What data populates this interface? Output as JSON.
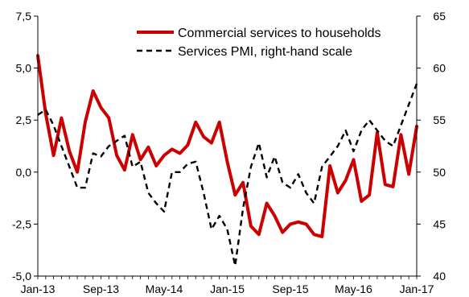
{
  "chart_data": {
    "type": "line",
    "x_tick_labels": [
      "Jan-13",
      "Sep-13",
      "May-14",
      "Jan-15",
      "Sep-15",
      "May-16",
      "Jan-17"
    ],
    "x_start": "2013-01",
    "left_axis": {
      "ticks": [
        7.5,
        5.0,
        2.5,
        0.0,
        -2.5,
        -5.0
      ],
      "tick_labels": [
        "7,5",
        "5,0",
        "2,5",
        "0,0",
        "-2,5",
        "-5,0"
      ],
      "ylim": [
        -5.0,
        7.5
      ]
    },
    "right_axis": {
      "ticks": [
        65,
        60,
        55,
        50,
        45,
        40
      ],
      "tick_labels": [
        "65",
        "60",
        "55",
        "50",
        "45",
        "40"
      ],
      "ylim": [
        40,
        65
      ]
    },
    "grid": false,
    "legend_position": "top-right",
    "series": [
      {
        "name": "Commercial services to households",
        "axis": "left",
        "color": "#cc0000",
        "style": "solid",
        "values": [
          5.6,
          2.8,
          0.8,
          2.6,
          1.0,
          0.0,
          2.4,
          3.9,
          3.1,
          2.6,
          0.8,
          0.1,
          1.8,
          0.6,
          1.2,
          0.3,
          0.8,
          1.1,
          0.9,
          1.3,
          2.4,
          1.7,
          1.4,
          2.4,
          0.5,
          -1.1,
          -0.5,
          -2.6,
          -3.0,
          -1.5,
          -2.1,
          -2.9,
          -2.5,
          -2.4,
          -2.5,
          -3.0,
          -3.1,
          0.3,
          -1.0,
          -0.4,
          0.6,
          -1.4,
          -1.1,
          1.9,
          -0.6,
          -0.7,
          1.8,
          -0.1,
          2.2
        ]
      },
      {
        "name": "Services PMI, right-hand scale",
        "axis": "right",
        "color": "#000000",
        "style": "dashed",
        "values": [
          55.5,
          56.0,
          54.5,
          52.5,
          50.5,
          48.5,
          48.5,
          51.8,
          51.5,
          52.5,
          53.0,
          53.5,
          50.5,
          51.0,
          48.0,
          47.0,
          46.2,
          50.0,
          50.0,
          50.8,
          51.0,
          48.0,
          44.5,
          45.8,
          44.5,
          41.0,
          46.5,
          50.5,
          52.8,
          49.5,
          51.5,
          49.0,
          48.5,
          49.8,
          48.0,
          47.0,
          50.5,
          51.5,
          52.5,
          54.0,
          52.0,
          54.0,
          55.0,
          54.0,
          53.0,
          52.5,
          54.5,
          56.5,
          58.5
        ]
      }
    ]
  }
}
